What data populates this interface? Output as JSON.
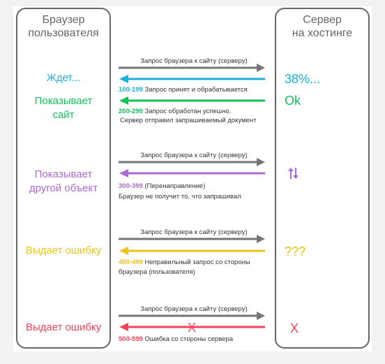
{
  "browser": {
    "title_line1": "Браузер",
    "title_line2": "пользователя"
  },
  "server": {
    "title_line1": "Сервер",
    "title_line2": "на хостинге"
  },
  "request_label": "Запрос браузера к сайту (серверу)",
  "colors": {
    "request": "#757575",
    "c100": "#1ab0dc",
    "c200": "#12c25a",
    "c300": "#ad6ad6",
    "c400": "#eec21a",
    "c500": "#f2455b"
  },
  "groups": {
    "g1": {
      "state_100": "Ждет...",
      "state_200_line1": "Показывает",
      "state_200_line2": "сайт",
      "server_100": "38%...",
      "server_200": "Ok",
      "code_100": "100-199",
      "desc_100": "Запрос принят и обрабатывается",
      "code_200": "200-299",
      "desc_200": "Запрос обработан успешно.",
      "desc_200_line2": "Сервер отправил запрашиваемый документ"
    },
    "g3": {
      "state_line1": "Показывает",
      "state_line2": "другой объект",
      "server_icon": "redirect-arrows-icon",
      "code": "300-399",
      "desc": "(Перенаправление)",
      "desc_line2": "Браузер не получит то, что запрашивал"
    },
    "g4": {
      "state": "Выдает ошибку",
      "server": "???",
      "code": "400-499",
      "desc": "Неправильный запрос со стороны",
      "desc_line2": "браузера (пользователя)"
    },
    "g5": {
      "state": "Выдает ошибку",
      "server": "X",
      "code": "500-599",
      "desc": "Ошибка со стороны сервера",
      "arrow_mark": "X"
    }
  }
}
